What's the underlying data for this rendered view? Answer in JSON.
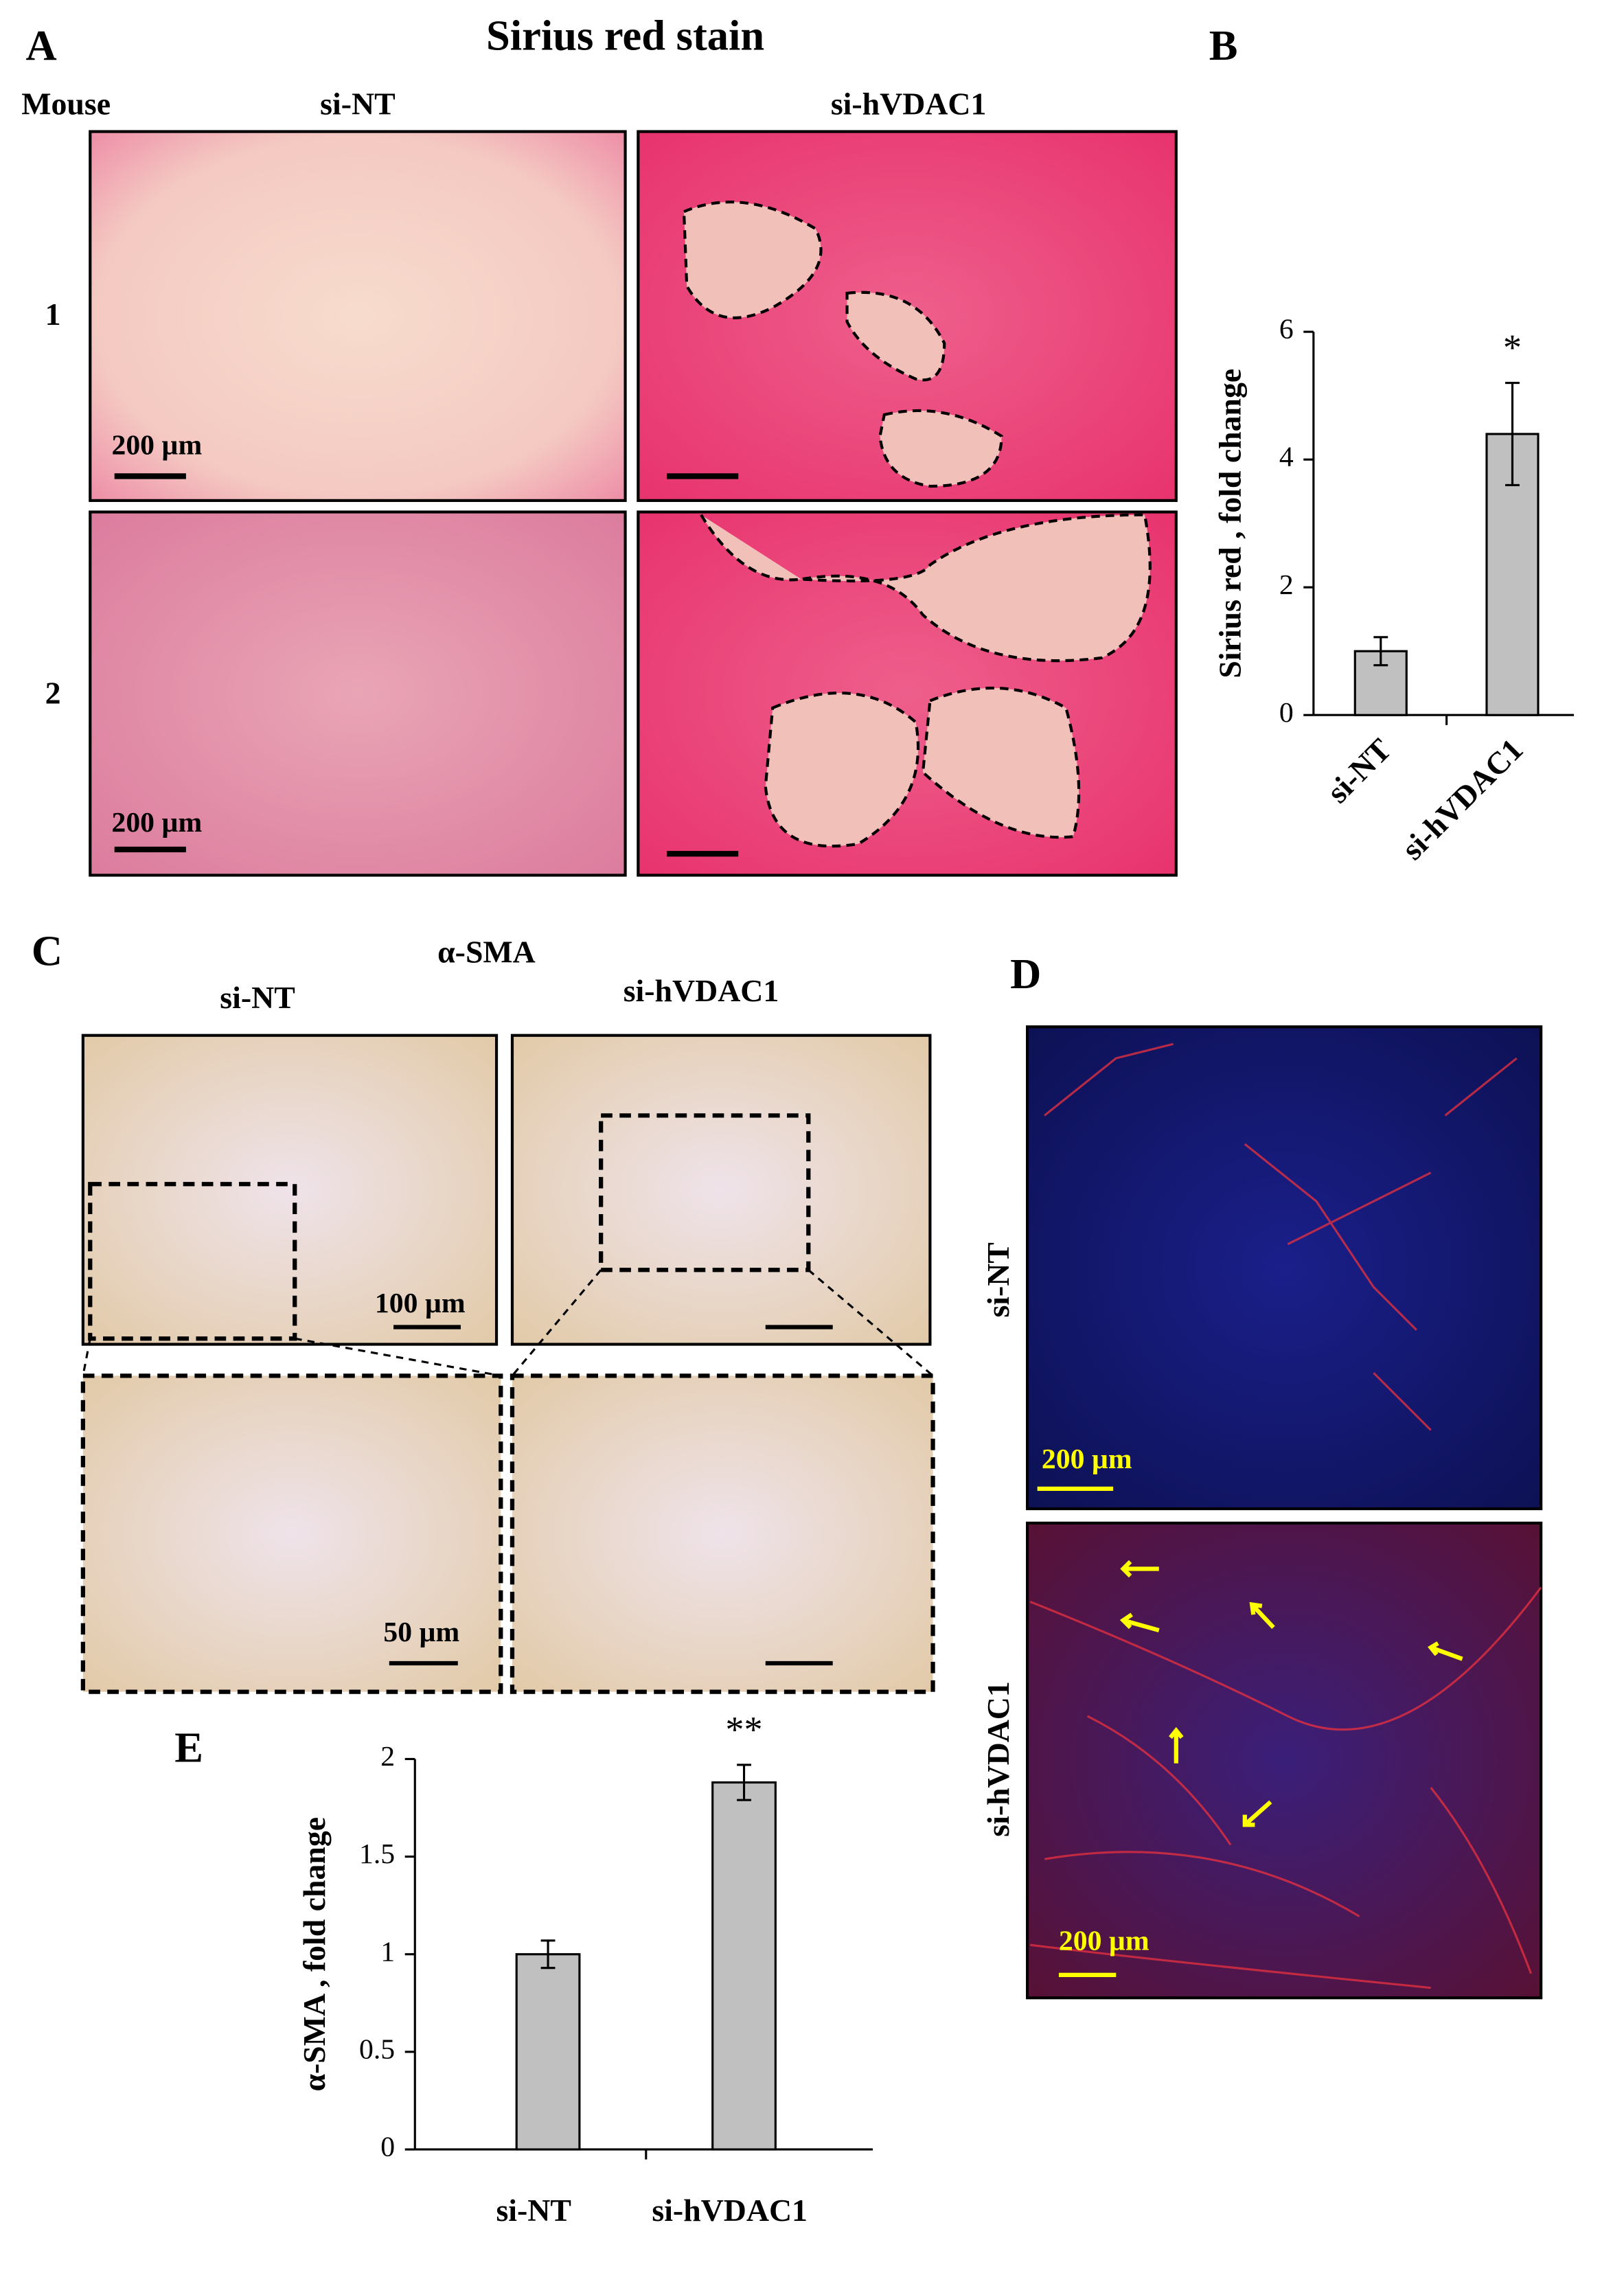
{
  "panels": {
    "A": {
      "label": "A",
      "title": "Sirius red stain",
      "row_header": "Mouse",
      "columns": [
        "si-NT",
        "si-hVDAC1"
      ],
      "rows": [
        "1",
        "2"
      ],
      "scale_bars": [
        "200 µm",
        "200 µm"
      ]
    },
    "B": {
      "label": "B"
    },
    "C": {
      "label": "C",
      "title": "α-SMA",
      "columns": [
        "si-NT",
        "si-hVDAC1"
      ],
      "scale_bars": [
        "100 µm",
        "50 µm"
      ]
    },
    "D": {
      "label": "D",
      "rows": [
        "si-NT",
        "si-hVDAC1"
      ],
      "scale_bars": [
        "200 µm",
        "200 µm"
      ]
    },
    "E": {
      "label": "E"
    }
  },
  "chart_data": [
    {
      "type": "bar",
      "y_label": "Sirius  red , fold change",
      "categories": [
        "si-NT",
        "si-hVDAC1"
      ],
      "values": [
        1.0,
        4.4
      ],
      "errors": [
        0.22,
        0.8
      ],
      "significance": [
        null,
        "*"
      ],
      "color": "#c0c0c0",
      "ylim": [
        0,
        6
      ],
      "yticks": [
        0,
        2,
        4,
        6
      ],
      "grid": false
    },
    {
      "type": "bar",
      "y_label": "α-SMA , fold change",
      "categories": [
        "si-NT",
        "si-hVDAC1"
      ],
      "values": [
        1.0,
        1.88
      ],
      "errors": [
        0.07,
        0.09
      ],
      "significance": [
        null,
        "**"
      ],
      "color": "#c0c0c0",
      "ylim": [
        0,
        2
      ],
      "yticks": [
        0,
        0.5,
        1,
        1.5,
        2
      ],
      "grid": false
    }
  ]
}
